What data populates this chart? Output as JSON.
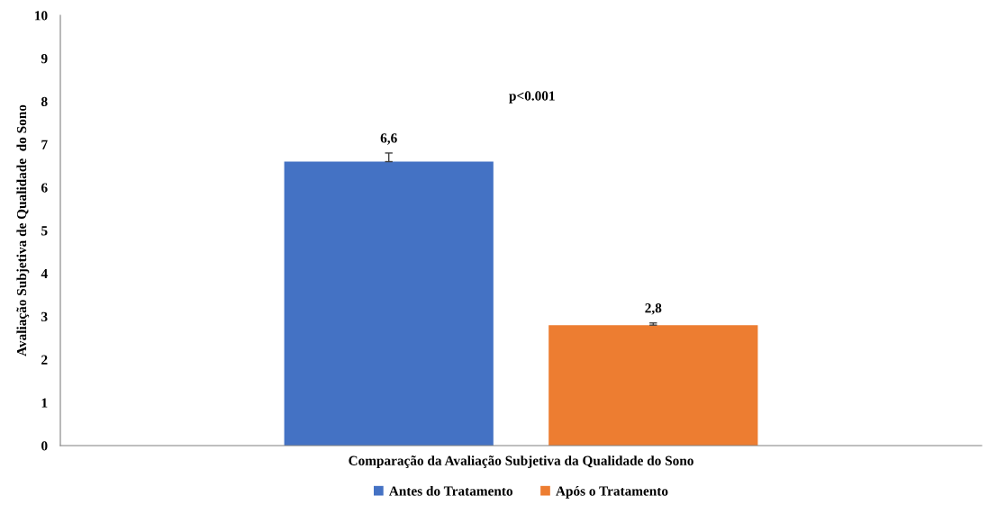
{
  "chart_data": {
    "type": "bar",
    "ylabel": "Avaliação Subjetiva de Qualidade  do Sono",
    "categories": [
      "Comparação da Avaliação Subjetiva da Qualidade do Sono"
    ],
    "series": [
      {
        "name": "Antes do Tratamento",
        "color": "#4472c4",
        "values": [
          6.6
        ],
        "errors": [
          [
            6.6,
            6.8
          ]
        ],
        "value_labels": [
          "6,6"
        ]
      },
      {
        "name": "Após o Tratamento",
        "color": "#ed7d31",
        "values": [
          2.8
        ],
        "errors": [
          [
            2.8,
            2.85
          ]
        ],
        "value_labels": [
          "2,8"
        ]
      }
    ],
    "ylim": [
      0,
      10
    ],
    "yticks": [
      0,
      1,
      2,
      3,
      4,
      5,
      6,
      7,
      8,
      9,
      10
    ],
    "grid": false,
    "legend": "bottom",
    "annotations": [
      "p<0.001"
    ]
  }
}
